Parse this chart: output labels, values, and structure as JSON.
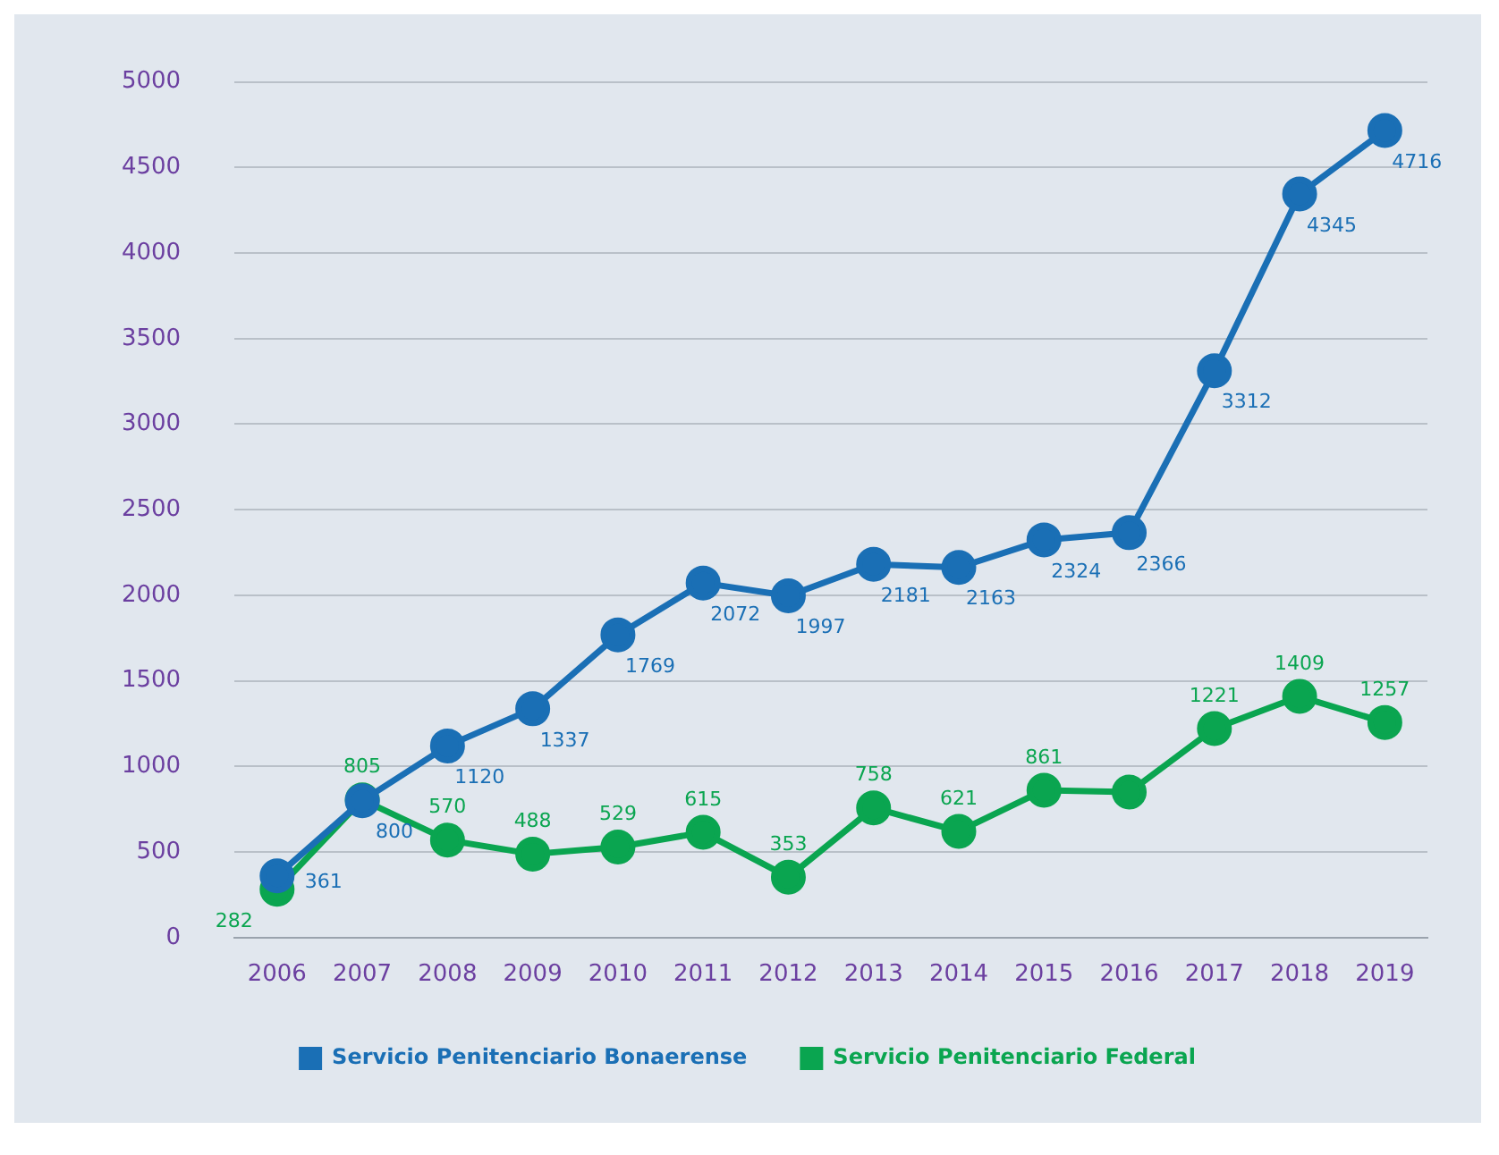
{
  "chart_data": {
    "type": "line",
    "categories": [
      "2006",
      "2007",
      "2008",
      "2009",
      "2010",
      "2011",
      "2012",
      "2013",
      "2014",
      "2015",
      "2016",
      "2017",
      "2018",
      "2019"
    ],
    "series": [
      {
        "name": "Servicio Penitenciario Bonaerense",
        "color": "#1a6fb5",
        "values": [
          361,
          800,
          1120,
          1337,
          1769,
          2072,
          1997,
          2181,
          2163,
          2324,
          2366,
          3312,
          4345,
          4716
        ],
        "value_labels": [
          "361",
          "800",
          "1120",
          "1337",
          "1769",
          "2072",
          "1997",
          "2181",
          "2163",
          "2324",
          "2366",
          "3312",
          "4345",
          "4716"
        ]
      },
      {
        "name": "Servicio Penitenciario Federal",
        "color": "#0aa550",
        "values": [
          282,
          805,
          570,
          488,
          529,
          615,
          353,
          758,
          621,
          861,
          850,
          1221,
          1409,
          1257
        ],
        "value_labels": [
          "282",
          "805",
          "570",
          "488",
          "529",
          "615",
          "353",
          "758",
          "621",
          "861",
          null,
          "1221",
          "1409",
          "1257"
        ]
      }
    ],
    "ylim": [
      0,
      5000
    ],
    "yticks": [
      0,
      500,
      1000,
      1500,
      2000,
      2500,
      3000,
      3500,
      4000,
      4500,
      5000
    ],
    "grid": "y",
    "legend": "bottom",
    "marker": "circle",
    "line_style": "solid"
  }
}
